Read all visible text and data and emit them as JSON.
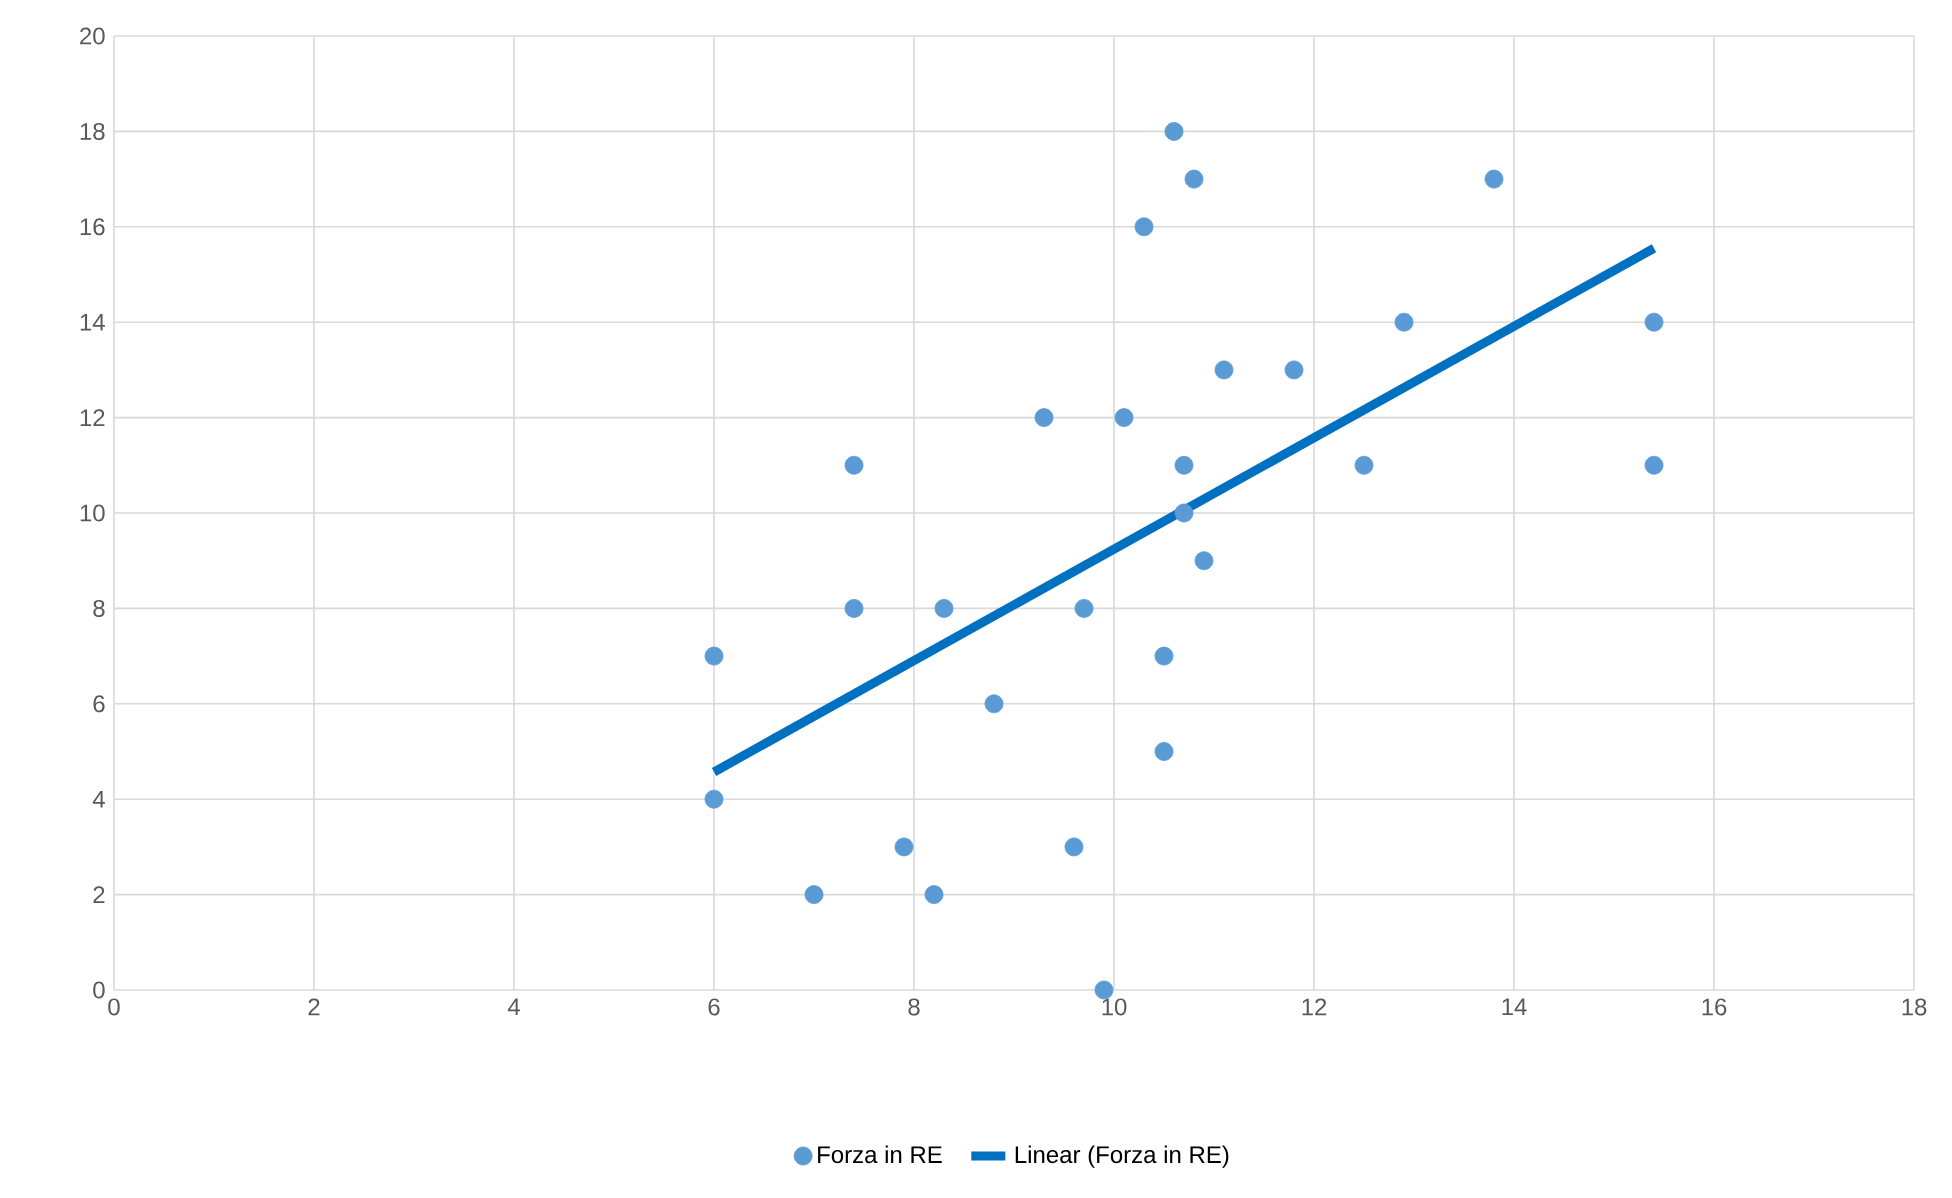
{
  "chart_data": {
    "type": "scatter",
    "xlim": [
      0,
      18
    ],
    "ylim": [
      0,
      20
    ],
    "xticks": [
      0,
      2,
      4,
      6,
      8,
      10,
      12,
      14,
      16,
      18
    ],
    "yticks": [
      0,
      2,
      4,
      6,
      8,
      10,
      12,
      14,
      16,
      18,
      20
    ],
    "grid": true,
    "legend": "bottom",
    "series": [
      {
        "name": "Forza in RE",
        "marker": "circle",
        "color": "#5b9bd5",
        "x": [
          6,
          6,
          7,
          7.4,
          7.4,
          7.9,
          8.2,
          8.3,
          8.8,
          9.3,
          9.6,
          9.7,
          9.9,
          10.1,
          10.3,
          10.5,
          10.5,
          10.6,
          10.7,
          10.7,
          10.8,
          10.9,
          11.1,
          11.8,
          12.5,
          12.9,
          13.8,
          15.4,
          15.4
        ],
        "values": [
          7,
          4,
          2,
          11,
          8,
          3,
          2,
          8,
          6,
          12,
          3,
          8,
          0,
          12,
          16,
          7,
          5,
          18,
          11,
          10,
          17,
          9,
          13,
          13,
          11,
          14,
          17,
          14,
          11
        ]
      },
      {
        "name": "Linear (Forza in RE)",
        "type": "line",
        "marker": "none",
        "line_style": "solid",
        "color": "#0070c0",
        "x": [
          6,
          15.4
        ],
        "values": [
          4.57,
          15.55
        ]
      }
    ]
  }
}
